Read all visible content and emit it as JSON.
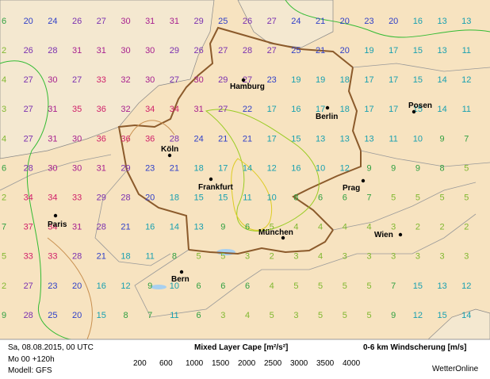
{
  "map": {
    "grid": [
      [
        6,
        20,
        24,
        26,
        27,
        30,
        31,
        31,
        29,
        25,
        26,
        27,
        24,
        21,
        20,
        23,
        20,
        16,
        13,
        13
      ],
      [
        2,
        26,
        28,
        31,
        31,
        30,
        30,
        29,
        26,
        27,
        28,
        27,
        25,
        21,
        20,
        19,
        17,
        15,
        13,
        11
      ],
      [
        4,
        27,
        30,
        27,
        33,
        32,
        30,
        27,
        30,
        29,
        27,
        23,
        19,
        19,
        18,
        17,
        17,
        15,
        14,
        12
      ],
      [
        3,
        27,
        31,
        35,
        36,
        32,
        34,
        34,
        31,
        27,
        22,
        17,
        16,
        17,
        18,
        17,
        17,
        15,
        14,
        11
      ],
      [
        4,
        27,
        31,
        30,
        36,
        36,
        36,
        28,
        24,
        21,
        21,
        17,
        15,
        13,
        13,
        13,
        11,
        10,
        9,
        7
      ],
      [
        6,
        28,
        30,
        30,
        31,
        29,
        23,
        21,
        18,
        17,
        14,
        12,
        16,
        10,
        12,
        9,
        9,
        9,
        8,
        5
      ],
      [
        2,
        34,
        34,
        33,
        29,
        28,
        20,
        18,
        15,
        15,
        11,
        10,
        8,
        6,
        6,
        7,
        5,
        5,
        5,
        5
      ],
      [
        7,
        37,
        34,
        31,
        28,
        21,
        16,
        14,
        13,
        9,
        6,
        5,
        4,
        4,
        4,
        4,
        3,
        2,
        2,
        2
      ],
      [
        5,
        33,
        33,
        28,
        21,
        18,
        11,
        8,
        5,
        5,
        3,
        2,
        3,
        4,
        3,
        3,
        3,
        3,
        3,
        3
      ],
      [
        2,
        27,
        23,
        20,
        16,
        12,
        9,
        10,
        6,
        6,
        6,
        4,
        5,
        5,
        5,
        5,
        7,
        15,
        13,
        12
      ],
      [
        9,
        28,
        25,
        20,
        15,
        8,
        7,
        11,
        6,
        3,
        4,
        5,
        3,
        5,
        5,
        5,
        9,
        12,
        15,
        14
      ]
    ],
    "cities": [
      "Hamburg",
      "Berlin",
      "Posen",
      "Köln",
      "Frankfurt",
      "Prag",
      "München",
      "Wien",
      "Paris",
      "Bern"
    ]
  },
  "footer": {
    "date": "Sa, 08.08.2015, 00 UTC",
    "run": "Mo 00 +120h",
    "model": "Modell: GFS",
    "cape_title": "Mixed Layer Cape [m²/s²]",
    "shear_title": "0-6 km Windscherung [m/s]",
    "levels": [
      200,
      600,
      1000,
      1500,
      2000,
      2500,
      3000,
      3500,
      4000
    ],
    "level_colors": [
      "#33bb33",
      "#99cc22",
      "#ddcc22",
      "#e0a030",
      "#c89050",
      "#cc3333",
      "#cc2288",
      "#9933aa",
      "#662288"
    ],
    "brand": "WetterOnline"
  }
}
